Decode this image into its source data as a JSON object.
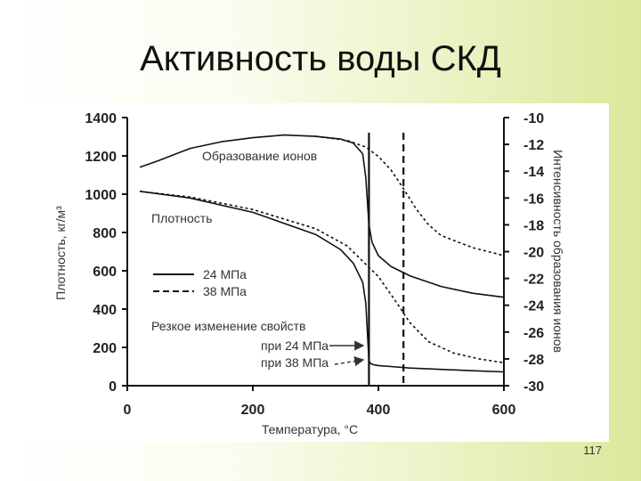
{
  "slide": {
    "title": "Активность воды СКД",
    "page_number": "117"
  },
  "chart_data": {
    "type": "line",
    "xlabel": "Температура, °C",
    "ylabel_left": "Плотность, кг/м³",
    "ylabel_right": "Интенсивность образования ионов",
    "xlim": [
      0,
      600
    ],
    "ylim_left": [
      0,
      1400
    ],
    "ylim_right": [
      -30,
      -10
    ],
    "x_ticks": [
      "0",
      "200",
      "400",
      "600"
    ],
    "y_left_ticks": [
      "0",
      "200",
      "400",
      "600",
      "800",
      "1000",
      "1200",
      "1400"
    ],
    "y_right_ticks": [
      "-30",
      "-28",
      "-26",
      "-24",
      "-22",
      "-20",
      "-18",
      "-16",
      "-14",
      "-12",
      "-10"
    ],
    "annotations": {
      "ion_label": "Образование ионов",
      "density_label": "Плотность",
      "legend_24": "24 МПа",
      "legend_38": "38 МПа",
      "abrupt_change": "Резкое изменение свойств",
      "at_24": "при 24 МПа",
      "at_38": "при 38 МПа"
    },
    "vlines": [
      {
        "x": 385,
        "style": "solid"
      },
      {
        "x": 440,
        "style": "dashed"
      }
    ],
    "series": [
      {
        "name": "24 МПа",
        "measure": "Плотность",
        "axis": "left",
        "style": "solid",
        "x": [
          20,
          100,
          200,
          300,
          340,
          360,
          375,
          380,
          383,
          385,
          388,
          392,
          400,
          420,
          450,
          500,
          550,
          600
        ],
        "y": [
          1015,
          980,
          905,
          790,
          710,
          640,
          540,
          430,
          250,
          130,
          115,
          110,
          105,
          100,
          92,
          85,
          78,
          72
        ]
      },
      {
        "name": "38 МПа",
        "measure": "Плотность",
        "axis": "left",
        "style": "dashed",
        "x": [
          20,
          100,
          200,
          300,
          350,
          400,
          430,
          450,
          480,
          520,
          560,
          600
        ],
        "y": [
          1015,
          985,
          920,
          820,
          730,
          570,
          430,
          330,
          230,
          170,
          140,
          120
        ]
      },
      {
        "name": "24 МПа",
        "measure": "Образование ионов",
        "axis": "right",
        "style": "solid",
        "x": [
          20,
          50,
          100,
          150,
          200,
          250,
          300,
          340,
          360,
          375,
          380,
          385,
          390,
          400,
          420,
          450,
          500,
          550,
          600
        ],
        "y": [
          -13.7,
          -13.2,
          -12.3,
          -11.8,
          -11.5,
          -11.3,
          -11.4,
          -11.6,
          -11.9,
          -12.7,
          -14.5,
          -18.0,
          -19.3,
          -20.3,
          -21.1,
          -21.8,
          -22.6,
          -23.1,
          -23.4
        ]
      },
      {
        "name": "38 МПа",
        "measure": "Образование ионов",
        "axis": "right",
        "style": "dashed",
        "x": [
          300,
          350,
          380,
          400,
          420,
          440,
          460,
          480,
          500,
          550,
          600
        ],
        "y": [
          -11.4,
          -11.7,
          -12.2,
          -12.9,
          -13.9,
          -15.3,
          -16.8,
          -18.0,
          -18.8,
          -19.7,
          -20.3
        ]
      }
    ]
  }
}
